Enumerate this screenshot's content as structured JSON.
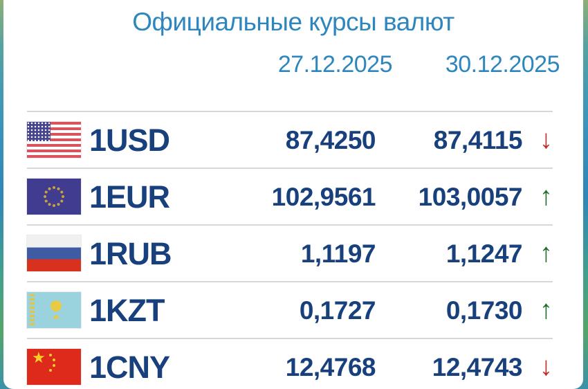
{
  "title": "Официальные курсы валют",
  "dates": {
    "first": "27.12.2025",
    "second": "30.12.2025"
  },
  "arrows": {
    "up": "↑",
    "down": "↓"
  },
  "colors": {
    "accent": "#2e86be",
    "navy": "#17407c",
    "up": "#1d6e2a",
    "down": "#c22a28",
    "divider": "#d7d7d7"
  },
  "rows": [
    {
      "flag": "us",
      "code": "1USD",
      "rate_1": "87,4250",
      "rate_2": "87,4115",
      "trend": "down"
    },
    {
      "flag": "eu",
      "code": "1EUR",
      "rate_1": "102,9561",
      "rate_2": "103,0057",
      "trend": "up"
    },
    {
      "flag": "ru",
      "code": "1RUB",
      "rate_1": "1,1197",
      "rate_2": "1,1247",
      "trend": "up"
    },
    {
      "flag": "kz",
      "code": "1KZT",
      "rate_1": "0,1727",
      "rate_2": "0,1730",
      "trend": "up"
    },
    {
      "flag": "cn",
      "code": "1CNY",
      "rate_1": "12,4768",
      "rate_2": "12,4743",
      "trend": "down"
    }
  ]
}
